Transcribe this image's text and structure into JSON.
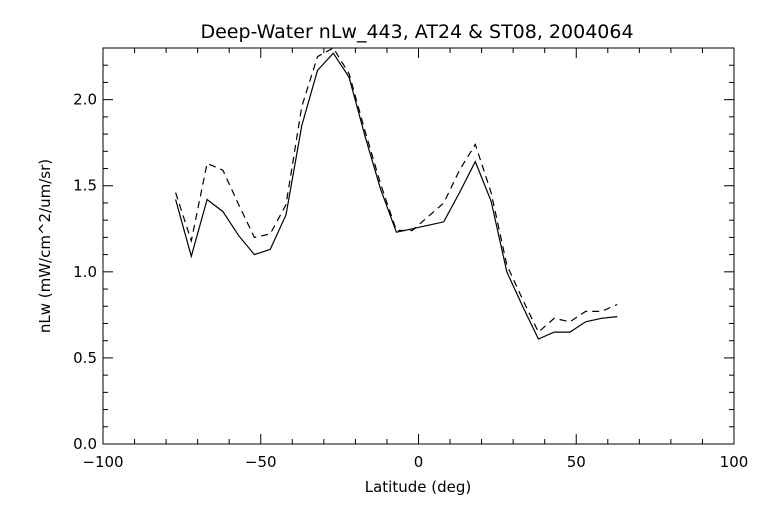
{
  "chart_data": {
    "type": "line",
    "title": "Deep-Water nLw_443, AT24 & ST08, 2004064",
    "xlabel": "Latitude (deg)",
    "ylabel": "nLw (mW/cm^2/um/sr)",
    "xlim": [
      -100,
      100
    ],
    "ylim": [
      0.0,
      2.3
    ],
    "x_ticks": [
      -100,
      -50,
      0,
      50,
      100
    ],
    "x_tick_labels": [
      "−100",
      "−50",
      "0",
      "50",
      "100"
    ],
    "y_ticks": [
      0.0,
      0.5,
      1.0,
      1.5,
      2.0
    ],
    "y_tick_labels": [
      "0.0",
      "0.5",
      "1.0",
      "1.5",
      "2.0"
    ],
    "grid": false,
    "series": [
      {
        "style": "solid",
        "x": [
          -77,
          -72,
          -67,
          -62,
          -57,
          -52,
          -47,
          -42,
          -37,
          -32,
          -27,
          -22,
          -17,
          -12,
          -7,
          -2,
          3,
          8,
          13,
          18,
          23,
          28,
          33,
          38,
          43,
          48,
          53,
          58,
          63
        ],
        "y": [
          1.42,
          1.09,
          1.42,
          1.35,
          1.21,
          1.1,
          1.13,
          1.33,
          1.85,
          2.17,
          2.27,
          2.13,
          1.79,
          1.48,
          1.23,
          1.25,
          1.27,
          1.29,
          1.46,
          1.64,
          1.41,
          1.0,
          0.8,
          0.61,
          0.65,
          0.65,
          0.71,
          0.73,
          0.74
        ]
      },
      {
        "style": "dashed",
        "x": [
          -77,
          -72,
          -67,
          -62,
          -57,
          -52,
          -47,
          -42,
          -37,
          -32,
          -27,
          -22,
          -17,
          -12,
          -7,
          -2,
          3,
          8,
          13,
          18,
          23,
          28,
          33,
          38,
          43,
          48,
          53,
          58,
          63
        ],
        "y": [
          1.46,
          1.18,
          1.63,
          1.59,
          1.39,
          1.2,
          1.22,
          1.39,
          1.96,
          2.25,
          2.3,
          2.15,
          1.82,
          1.51,
          1.24,
          1.24,
          1.32,
          1.4,
          1.59,
          1.74,
          1.46,
          1.04,
          0.84,
          0.65,
          0.73,
          0.71,
          0.77,
          0.77,
          0.81
        ]
      }
    ]
  }
}
